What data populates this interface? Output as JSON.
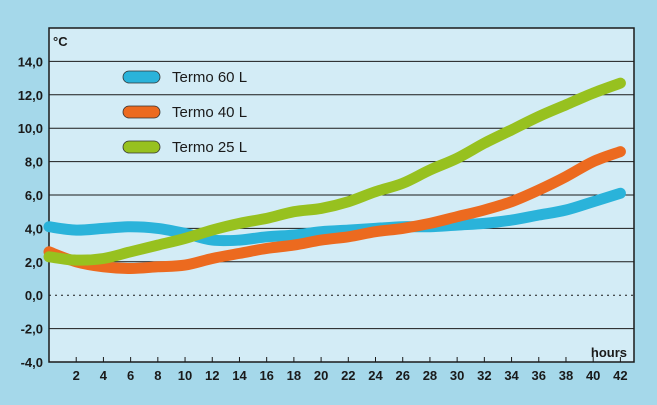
{
  "chart_data": {
    "type": "line",
    "title": "",
    "xlabel": "hours",
    "ylabel": "°C",
    "xlim": [
      0,
      43
    ],
    "ylim": [
      -4,
      16
    ],
    "x_ticks": [
      2,
      4,
      6,
      8,
      10,
      12,
      14,
      16,
      18,
      20,
      22,
      24,
      26,
      28,
      30,
      32,
      34,
      36,
      38,
      40,
      42
    ],
    "y_ticks": [
      -4,
      -2,
      0,
      2,
      4,
      6,
      8,
      10,
      12,
      14
    ],
    "y_tick_labels": [
      "-4,0",
      "-2,0",
      "0,0",
      "2,0",
      "4,0",
      "6,0",
      "8,0",
      "10,0",
      "12,0",
      "14,0"
    ],
    "grid": "horizontal",
    "legend_position": "top-left",
    "series": [
      {
        "name": "Termo 60 L",
        "color": "#2ab3da",
        "x": [
          0,
          2,
          4,
          6,
          8,
          10,
          12,
          14,
          16,
          18,
          20,
          22,
          24,
          26,
          28,
          30,
          32,
          34,
          36,
          38,
          40,
          42
        ],
        "y": [
          4.1,
          3.9,
          4.0,
          4.1,
          4.0,
          3.7,
          3.3,
          3.3,
          3.5,
          3.6,
          3.8,
          3.9,
          4.0,
          4.1,
          4.1,
          4.2,
          4.3,
          4.5,
          4.8,
          5.1,
          5.6,
          6.1
        ]
      },
      {
        "name": "Termo 40 L",
        "color": "#ec6a1f",
        "x": [
          0,
          2,
          4,
          6,
          8,
          10,
          12,
          14,
          16,
          18,
          20,
          22,
          24,
          26,
          28,
          30,
          32,
          34,
          36,
          38,
          40,
          42
        ],
        "y": [
          2.6,
          2.0,
          1.7,
          1.6,
          1.7,
          1.8,
          2.2,
          2.5,
          2.8,
          3.0,
          3.3,
          3.5,
          3.8,
          4.0,
          4.3,
          4.7,
          5.1,
          5.6,
          6.3,
          7.1,
          8.0,
          8.6
        ]
      },
      {
        "name": "Termo 25 L",
        "color": "#97c11f",
        "x": [
          0,
          2,
          4,
          6,
          8,
          10,
          12,
          14,
          16,
          18,
          20,
          22,
          24,
          26,
          28,
          30,
          32,
          34,
          36,
          38,
          40,
          42
        ],
        "y": [
          2.3,
          2.1,
          2.2,
          2.6,
          3.0,
          3.4,
          3.9,
          4.3,
          4.6,
          5.0,
          5.2,
          5.6,
          6.2,
          6.7,
          7.5,
          8.2,
          9.1,
          9.9,
          10.7,
          11.4,
          12.1,
          12.7
        ]
      }
    ]
  }
}
